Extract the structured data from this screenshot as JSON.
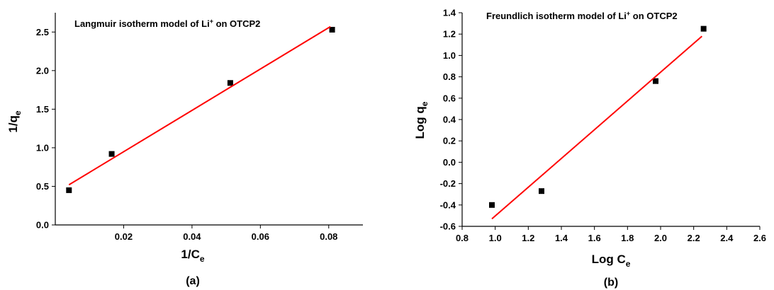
{
  "chart_data": [
    {
      "type": "scatter",
      "panel_label": "(a)",
      "title": {
        "main": "Langmuir isotherm model of Li",
        "sup": "+",
        "tail": " on OTCP2"
      },
      "xlabel": {
        "main": "1/C",
        "sub": "e"
      },
      "ylabel": {
        "main": "1/q",
        "sub": "e"
      },
      "xlim": [
        0,
        0.09
      ],
      "ylim": [
        0,
        2.75
      ],
      "x_ticks": [
        0.02,
        0.04,
        0.06,
        0.08
      ],
      "x_tick_labels": [
        "0.02",
        "0.04",
        "0.06",
        "0.08"
      ],
      "y_ticks": [
        0,
        0.5,
        1,
        1.5,
        2,
        2.5
      ],
      "y_tick_labels": [
        "0.0",
        "0.5",
        "1.0",
        "1.5",
        "2.0",
        "2.5"
      ],
      "series": [
        {
          "kind": "points",
          "color": "#000000",
          "x": [
            0.004,
            0.0165,
            0.0512,
            0.081
          ],
          "y": [
            0.45,
            0.92,
            1.84,
            2.53
          ]
        },
        {
          "kind": "fit",
          "color": "#ff0000",
          "x": [
            0.004,
            0.0805
          ],
          "y": [
            0.52,
            2.57
          ]
        }
      ],
      "grid": false
    },
    {
      "type": "scatter",
      "panel_label": "(b)",
      "title": {
        "main": "Freundlich isotherm model of Li",
        "sup": "+",
        "tail": " on OTCP2"
      },
      "xlabel": {
        "main": "Log C",
        "sub": "e"
      },
      "ylabel": {
        "main": "Log q",
        "sub": "e"
      },
      "xlim": [
        0.8,
        2.6
      ],
      "ylim": [
        -0.6,
        1.4
      ],
      "x_ticks": [
        0.8,
        1.0,
        1.2,
        1.4,
        1.6,
        1.8,
        2.0,
        2.2,
        2.4,
        2.6
      ],
      "x_tick_labels": [
        "0.8",
        "1.0",
        "1.2",
        "1.4",
        "1.6",
        "1.8",
        "2.0",
        "2.2",
        "2.4",
        "2.6"
      ],
      "y_ticks": [
        -0.6,
        -0.4,
        -0.2,
        0,
        0.2,
        0.4,
        0.6,
        0.8,
        1.0,
        1.2,
        1.4
      ],
      "y_tick_labels": [
        "-0.6",
        "-0.4",
        "-0.2",
        "0.0",
        "0.2",
        "0.4",
        "0.6",
        "0.8",
        "1.0",
        "1.2",
        "1.4"
      ],
      "series": [
        {
          "kind": "points",
          "color": "#000000",
          "x": [
            0.98,
            1.28,
            1.97,
            2.26
          ],
          "y": [
            -0.4,
            -0.27,
            0.76,
            1.25
          ]
        },
        {
          "kind": "fit",
          "color": "#ff0000",
          "x": [
            0.98,
            2.25
          ],
          "y": [
            -0.53,
            1.18
          ]
        }
      ],
      "grid": false
    }
  ]
}
